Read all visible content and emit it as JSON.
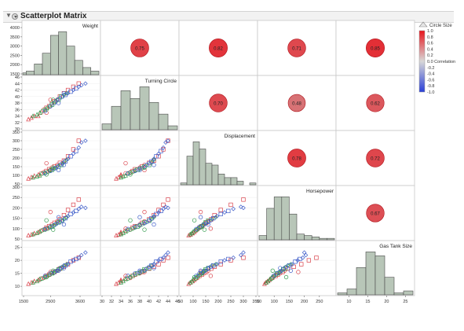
{
  "report": {
    "title": "Scatterplot Matrix"
  },
  "variables": [
    "Weight",
    "Turning Circle",
    "Displacement",
    "Horsepower",
    "Gas Tank Size"
  ],
  "legend": {
    "header": "Circle Size",
    "ticks": [
      "1.0",
      "0.8",
      "0.6",
      "0.4",
      "0.2",
      "0.0 Correlation",
      "-0.2",
      "-0.4",
      "-0.6",
      "-0.8",
      "-1.0"
    ]
  },
  "colors": {
    "histogram_fill": "#b8c6b8",
    "histogram_stroke": "#4a4a4a",
    "group_red": "#d9414a",
    "group_green": "#2f9a4a",
    "group_blue": "#3d5cc9"
  },
  "chart_data": {
    "type": "scatterplot_matrix",
    "variables": [
      "Weight",
      "Turning Circle",
      "Displacement",
      "Horsepower",
      "Gas Tank Size"
    ],
    "correlations": [
      {
        "row": 0,
        "col": 1,
        "value": 0.75,
        "label": "0.75"
      },
      {
        "row": 0,
        "col": 2,
        "value": 0.82,
        "label": "0.82"
      },
      {
        "row": 0,
        "col": 3,
        "value": 0.71,
        "label": "0.71"
      },
      {
        "row": 0,
        "col": 4,
        "value": 0.85,
        "label": "0.85"
      },
      {
        "row": 1,
        "col": 2,
        "value": 0.7,
        "label": "0.70"
      },
      {
        "row": 1,
        "col": 3,
        "value": 0.48,
        "label": "0.48"
      },
      {
        "row": 1,
        "col": 4,
        "value": 0.62,
        "label": "0.62"
      },
      {
        "row": 2,
        "col": 3,
        "value": 0.78,
        "label": "0.78"
      },
      {
        "row": 2,
        "col": 4,
        "value": 0.72,
        "label": "0.72"
      },
      {
        "row": 3,
        "col": 4,
        "value": 0.67,
        "label": "0.67"
      }
    ],
    "axes": {
      "Weight": {
        "range": [
          1500,
          4300
        ],
        "ticks": [
          1000,
          1500,
          2000,
          2500,
          3000,
          3500,
          4000
        ],
        "y_tick_labels": [
          "4000",
          "3500",
          "3000",
          "2500",
          "2000",
          "1500"
        ],
        "x_tick_labels": [
          {
            "v": 1500,
            "t": "1500"
          },
          {
            "v": 2500,
            "t": "2500"
          },
          {
            "v": 3600,
            "t": "3600"
          }
        ]
      },
      "Turning Circle": {
        "range": [
          30,
          46
        ],
        "ticks": [
          30,
          32,
          34,
          36,
          38,
          40,
          42,
          44,
          46
        ],
        "y_tick_labels": [
          "46",
          "44",
          "42",
          "40",
          "38",
          "36",
          "34",
          "32",
          "30"
        ],
        "x_tick_labels": [
          "30",
          "32",
          "34",
          "36",
          "38",
          "40",
          "42",
          "44",
          "46"
        ]
      },
      "Displacement": {
        "range": [
          50,
          350
        ],
        "ticks": [
          50,
          100,
          150,
          200,
          250,
          300,
          350
        ],
        "y_tick_labels": [
          "350",
          "300",
          "250",
          "200",
          "150",
          "100",
          "50"
        ],
        "x_tick_labels": [
          "50",
          "100",
          "150",
          "200",
          "250",
          "300",
          "350"
        ]
      },
      "Horsepower": {
        "range": [
          50,
          300
        ],
        "ticks": [
          50,
          100,
          150,
          200,
          250,
          300
        ],
        "y_tick_labels": [
          "300",
          "250",
          "200",
          "150",
          "100",
          "50"
        ],
        "x_tick_labels": [
          "50",
          "100",
          "150",
          "200",
          "250"
        ]
      },
      "Gas Tank Size": {
        "range": [
          7,
          27
        ],
        "ticks": [
          10,
          15,
          20,
          25
        ],
        "y_tick_labels": [
          "25",
          "20",
          "15",
          "10"
        ],
        "x_tick_labels": [
          "10",
          "15",
          "20",
          "25"
        ]
      }
    },
    "histograms": {
      "Weight": {
        "bins": [
          1400,
          1600,
          1900,
          2200,
          2500,
          2800,
          3100,
          3400,
          3700,
          4000,
          4300
        ],
        "counts": [
          1,
          2,
          6,
          12,
          22,
          24,
          16,
          8,
          4,
          2
        ]
      },
      "Turning Circle": {
        "bins": [
          30,
          32,
          34,
          36,
          38,
          40,
          42,
          44,
          46
        ],
        "counts": [
          3,
          12,
          20,
          16,
          22,
          14,
          8,
          2
        ]
      },
      "Displacement": {
        "bins": [
          50,
          75,
          100,
          125,
          150,
          175,
          200,
          225,
          250,
          275,
          300,
          325,
          350
        ],
        "counts": [
          1,
          16,
          24,
          20,
          12,
          11,
          6,
          4,
          4,
          2,
          0,
          1
        ]
      },
      "Horsepower": {
        "bins": [
          50,
          75,
          100,
          125,
          150,
          175,
          200,
          225,
          250,
          275,
          300
        ],
        "counts": [
          3,
          22,
          30,
          30,
          18,
          4,
          3,
          2,
          1,
          1
        ]
      },
      "Gas Tank Size": {
        "bins": [
          7,
          9.5,
          12,
          14.5,
          17,
          19.5,
          22,
          24.5,
          27
        ],
        "counts": [
          1,
          3,
          14,
          22,
          20,
          9,
          1,
          2
        ]
      }
    },
    "points": [
      {
        "g": "red",
        "m": "triangle",
        "v": [
          1680,
          33,
          82,
          68,
          11
        ]
      },
      {
        "g": "red",
        "m": "triangle",
        "v": [
          1790,
          33.5,
          90,
          72,
          11.5
        ]
      },
      {
        "g": "red",
        "m": "triangle",
        "v": [
          1900,
          34,
          98,
          78,
          12
        ]
      },
      {
        "g": "red",
        "m": "triangle",
        "v": [
          2050,
          34,
          105,
          84,
          12.5
        ]
      },
      {
        "g": "red",
        "m": "circle",
        "v": [
          2150,
          35,
          112,
          90,
          13
        ]
      },
      {
        "g": "red",
        "m": "circle",
        "v": [
          2250,
          36,
          118,
          96,
          13.2
        ]
      },
      {
        "g": "red",
        "m": "square",
        "v": [
          2350,
          36.5,
          125,
          105,
          14
        ]
      },
      {
        "g": "red",
        "m": "square",
        "v": [
          2450,
          37,
          135,
          112,
          14.5
        ]
      },
      {
        "g": "red",
        "m": "circle",
        "v": [
          2550,
          38,
          145,
          120,
          15
        ]
      },
      {
        "g": "red",
        "m": "square",
        "v": [
          2650,
          38.5,
          152,
          128,
          15.5
        ]
      },
      {
        "g": "red",
        "m": "circle",
        "v": [
          2750,
          39,
          160,
          135,
          16
        ]
      },
      {
        "g": "red",
        "m": "square",
        "v": [
          2850,
          40,
          172,
          145,
          16.8
        ]
      },
      {
        "g": "red",
        "m": "square",
        "v": [
          3000,
          41,
          185,
          165,
          17.5
        ]
      },
      {
        "g": "red",
        "m": "square",
        "v": [
          3150,
          42,
          210,
          190,
          18.5
        ]
      },
      {
        "g": "red",
        "m": "square",
        "v": [
          3350,
          43,
          250,
          215,
          20
        ]
      },
      {
        "g": "red",
        "m": "square",
        "v": [
          3550,
          44,
          300,
          240,
          21
        ]
      },
      {
        "g": "red",
        "m": "circle",
        "v": [
          2500,
          39,
          130,
          180,
          15.5
        ]
      },
      {
        "g": "red",
        "m": "circle",
        "v": [
          2350,
          35,
          170,
          100,
          14
        ]
      },
      {
        "g": "green",
        "m": "triangle",
        "v": [
          1850,
          34,
          88,
          74,
          11.5
        ]
      },
      {
        "g": "green",
        "m": "triangle",
        "v": [
          2000,
          34.5,
          95,
          80,
          12
        ]
      },
      {
        "g": "green",
        "m": "triangle",
        "v": [
          2100,
          35,
          100,
          86,
          12.8
        ]
      },
      {
        "g": "green",
        "m": "circle",
        "v": [
          2200,
          35.5,
          110,
          92,
          13
        ]
      },
      {
        "g": "green",
        "m": "circle",
        "v": [
          2300,
          36,
          115,
          95,
          13.5
        ]
      },
      {
        "g": "green",
        "m": "circle",
        "v": [
          2400,
          36.5,
          120,
          100,
          14
        ]
      },
      {
        "g": "green",
        "m": "circle",
        "v": [
          2480,
          37,
          128,
          106,
          14.5
        ]
      },
      {
        "g": "green",
        "m": "square",
        "v": [
          2560,
          37.5,
          132,
          110,
          15
        ]
      },
      {
        "g": "green",
        "m": "circle",
        "v": [
          2620,
          38,
          138,
          115,
          15.2
        ]
      },
      {
        "g": "green",
        "m": "circle",
        "v": [
          2700,
          38.5,
          142,
          122,
          15.8
        ]
      },
      {
        "g": "green",
        "m": "square",
        "v": [
          2800,
          39,
          150,
          130,
          16.5
        ]
      },
      {
        "g": "green",
        "m": "square",
        "v": [
          2900,
          40,
          160,
          138,
          17
        ]
      },
      {
        "g": "green",
        "m": "diamond",
        "v": [
          3000,
          40.5,
          175,
          145,
          18
        ]
      },
      {
        "g": "green",
        "m": "diamond",
        "v": [
          3100,
          41,
          190,
          155,
          18.5
        ]
      },
      {
        "g": "green",
        "m": "circle",
        "v": [
          2350,
          36,
          105,
          140,
          13.5
        ]
      },
      {
        "g": "green",
        "m": "circle",
        "v": [
          2600,
          39,
          145,
          95,
          16
        ]
      },
      {
        "g": "blue",
        "m": "circle",
        "v": [
          2300,
          35.5,
          112,
          98,
          14
        ]
      },
      {
        "g": "blue",
        "m": "circle",
        "v": [
          2500,
          37,
          125,
          108,
          15
        ]
      },
      {
        "g": "blue",
        "m": "circle",
        "v": [
          2650,
          38,
          140,
          118,
          15.5
        ]
      },
      {
        "g": "blue",
        "m": "diamond",
        "v": [
          2750,
          39,
          150,
          125,
          16
        ]
      },
      {
        "g": "blue",
        "m": "circle",
        "v": [
          2850,
          39.5,
          160,
          132,
          16.8
        ]
      },
      {
        "g": "blue",
        "m": "circle",
        "v": [
          2950,
          40,
          170,
          140,
          17.5
        ]
      },
      {
        "g": "blue",
        "m": "square",
        "v": [
          3050,
          40.5,
          180,
          150,
          18
        ]
      },
      {
        "g": "blue",
        "m": "diamond",
        "v": [
          3150,
          41,
          195,
          160,
          18.5
        ]
      },
      {
        "g": "blue",
        "m": "square",
        "v": [
          3250,
          41.5,
          210,
          170,
          19.5
        ]
      },
      {
        "g": "blue",
        "m": "diamond",
        "v": [
          3350,
          42,
          225,
          178,
          20
        ]
      },
      {
        "g": "blue",
        "m": "square",
        "v": [
          3450,
          42.5,
          240,
          185,
          20.5
        ]
      },
      {
        "g": "blue",
        "m": "diamond",
        "v": [
          3550,
          43,
          260,
          195,
          21
        ]
      },
      {
        "g": "blue",
        "m": "diamond",
        "v": [
          3650,
          43.5,
          290,
          205,
          22
        ]
      },
      {
        "g": "blue",
        "m": "diamond",
        "v": [
          3800,
          44,
          300,
          200,
          23
        ]
      },
      {
        "g": "blue",
        "m": "circle",
        "v": [
          2800,
          38,
          130,
          155,
          16
        ]
      },
      {
        "g": "blue",
        "m": "circle",
        "v": [
          3000,
          41,
          160,
          120,
          17
        ]
      }
    ]
  }
}
